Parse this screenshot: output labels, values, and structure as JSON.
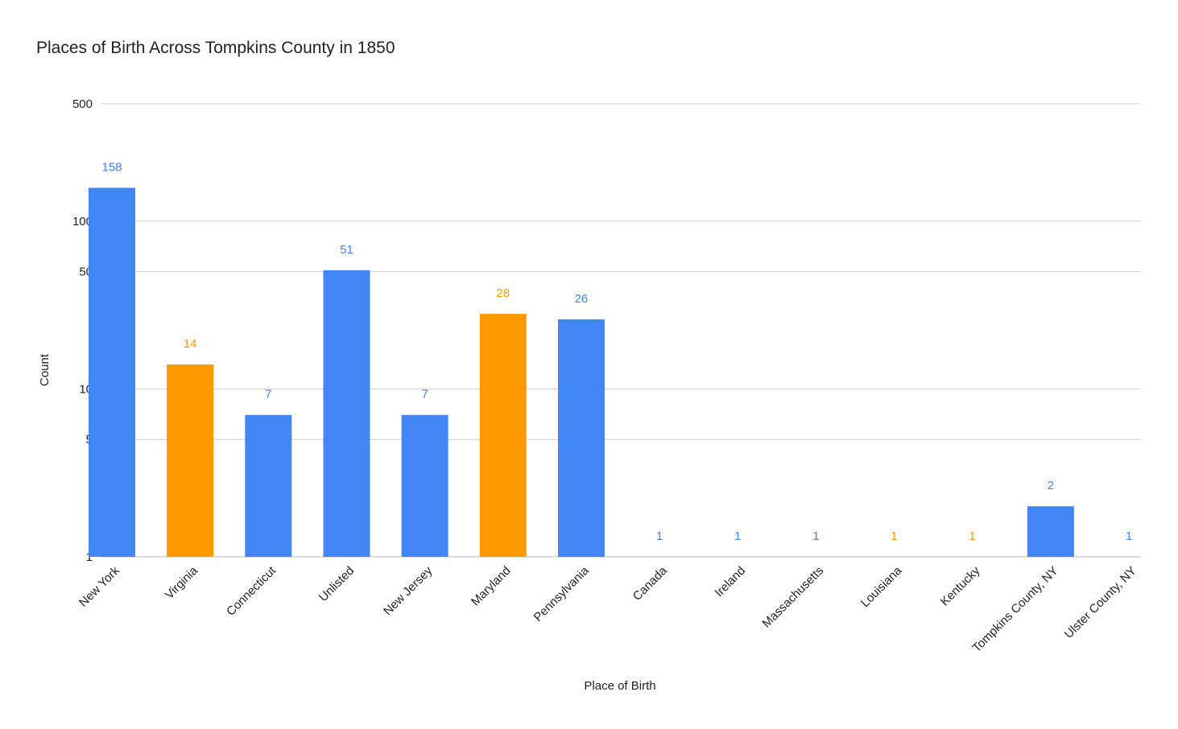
{
  "chart_data": {
    "type": "bar",
    "title": "Places of Birth Across Tompkins County in 1850",
    "x_label": "Place of Birth",
    "y_label": "Count",
    "categories": [
      "New York",
      "Virginia",
      "Connecticut",
      "Unlisted",
      "New Jersey",
      "Maryland",
      "Pennsylvania",
      "Canada",
      "Ireland",
      "Massachusetts",
      "Louisiana",
      "Kentucky",
      "Tompkins County, NY",
      "Ulster County, NY"
    ],
    "values": [
      158,
      14,
      7,
      51,
      7,
      28,
      26,
      1,
      1,
      1,
      1,
      1,
      2,
      1
    ],
    "colors": [
      "#4285f4",
      "#ff9900",
      "#4285f4",
      "#4285f4",
      "#4285f4",
      "#ff9900",
      "#4285f4",
      "#4285f4",
      "#4285f4",
      "#4285f4",
      "#ff9900",
      "#ff9900",
      "#4285f4",
      "#4285f4"
    ],
    "log_scale": true,
    "ylim": [
      1,
      500
    ],
    "yticks": [
      1,
      5,
      10,
      50,
      100,
      500
    ],
    "grid": true
  }
}
